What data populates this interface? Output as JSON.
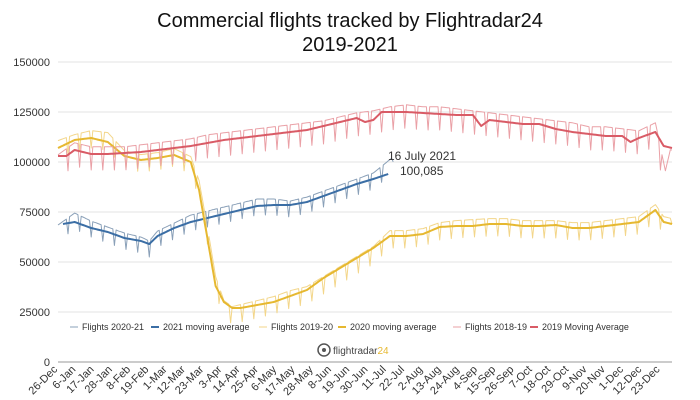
{
  "chart_data": {
    "type": "line",
    "title": "Commercial flights tracked by Flightradar24",
    "subtitle": "2019-2021",
    "ylim": [
      0,
      150000
    ],
    "y_ticks": [
      "0",
      "25000",
      "50000",
      "75000",
      "100000",
      "125000",
      "150000"
    ],
    "y_tick_values": [
      0,
      25000,
      50000,
      75000,
      100000,
      125000,
      150000
    ],
    "x_tick_labels": [
      "26-Dec",
      "6-Jan",
      "17-Jan",
      "28-Jan",
      "8-Feb",
      "19-Feb",
      "1-Mar",
      "12-Mar",
      "23-Mar",
      "3-Apr",
      "14-Apr",
      "25-Apr",
      "6-May",
      "17-May",
      "28-May",
      "8-Jun",
      "19-Jun",
      "30-Jun",
      "11-Jul",
      "22-Jul",
      "2-Aug",
      "13-Aug",
      "24-Aug",
      "4-Sep",
      "15-Sep",
      "26-Sep",
      "7-Oct",
      "18-Oct",
      "29-Oct",
      "9-Nov",
      "20-Nov",
      "1-Dec",
      "12-Dec",
      "23-Dec"
    ],
    "x_tick_days": [
      0,
      11,
      22,
      33,
      44,
      55,
      66,
      77,
      88,
      99,
      110,
      121,
      132,
      143,
      154,
      165,
      176,
      187,
      198,
      209,
      220,
      231,
      242,
      253,
      264,
      275,
      286,
      297,
      308,
      319,
      330,
      341,
      352,
      363
    ],
    "x_range_days": [
      0,
      370
    ],
    "grid": true,
    "legend_position": "bottom",
    "annotation": {
      "line1": "16 July 2021",
      "line2": "100,085",
      "x_day": 202,
      "y": 100085
    },
    "series": [
      {
        "name": "Flights 2020-21",
        "color": "#8aa0b8",
        "style": "daily",
        "amp": 5500,
        "period": 7,
        "end_day": 202,
        "x": [
          0,
          10,
          20,
          30,
          40,
          50,
          55,
          60,
          70,
          80,
          90,
          100,
          110,
          120,
          130,
          140,
          150,
          160,
          170,
          180,
          190,
          202
        ],
        "y": [
          66000,
          72000,
          68000,
          65000,
          62000,
          60000,
          58000,
          63000,
          67000,
          71000,
          73000,
          75000,
          77000,
          79000,
          79000,
          78000,
          80000,
          83000,
          86000,
          89000,
          92000,
          100085
        ]
      },
      {
        "name": "2021 moving average",
        "color": "#3b6ea5",
        "style": "avg",
        "x": [
          3,
          10,
          20,
          30,
          40,
          50,
          55,
          60,
          70,
          80,
          90,
          100,
          110,
          120,
          130,
          140,
          150,
          160,
          170,
          180,
          190,
          199
        ],
        "y": [
          69000,
          70000,
          67000,
          65000,
          62000,
          60500,
          59000,
          63000,
          67000,
          70000,
          72000,
          74000,
          76000,
          78000,
          78500,
          78500,
          80000,
          83000,
          86000,
          89000,
          91500,
          94000
        ]
      },
      {
        "name": "Flights 2019-20",
        "color": "#f3d68a",
        "style": "daily",
        "amp": 6000,
        "period": 7,
        "end_day": 370,
        "x": [
          0,
          10,
          20,
          30,
          40,
          50,
          60,
          70,
          80,
          85,
          90,
          95,
          100,
          105,
          110,
          120,
          130,
          140,
          150,
          160,
          170,
          180,
          190,
          200,
          210,
          220,
          230,
          240,
          250,
          260,
          270,
          280,
          290,
          300,
          310,
          320,
          330,
          340,
          350,
          360,
          365,
          370
        ],
        "y": [
          108000,
          111000,
          113000,
          112000,
          103000,
          101000,
          102000,
          104000,
          100000,
          88000,
          65000,
          40000,
          28000,
          25000,
          26000,
          28000,
          30000,
          33000,
          35000,
          40000,
          45000,
          50000,
          55000,
          63000,
          63000,
          64000,
          67000,
          68000,
          68500,
          69000,
          69000,
          68000,
          68000,
          68000,
          67000,
          67000,
          68000,
          69000,
          70000,
          76000,
          70000,
          69000
        ]
      },
      {
        "name": "2020 moving average",
        "color": "#e6b830",
        "style": "avg",
        "x": [
          0,
          10,
          20,
          30,
          40,
          50,
          60,
          70,
          80,
          85,
          90,
          95,
          100,
          105,
          110,
          120,
          130,
          140,
          150,
          160,
          170,
          180,
          190,
          200,
          210,
          220,
          230,
          240,
          250,
          260,
          270,
          280,
          290,
          300,
          310,
          320,
          330,
          340,
          350,
          360,
          365,
          370
        ],
        "y": [
          107000,
          111000,
          112000,
          110000,
          103000,
          101000,
          102000,
          103500,
          100000,
          86000,
          62000,
          38000,
          30000,
          27000,
          27000,
          28500,
          30000,
          33000,
          36000,
          42000,
          47000,
          52000,
          57000,
          63000,
          63000,
          64000,
          67500,
          68000,
          68000,
          69000,
          69000,
          68000,
          68000,
          68500,
          67000,
          67000,
          68000,
          69000,
          70000,
          76000,
          70000,
          69000
        ]
      },
      {
        "name": "Flights 2018-19",
        "color": "#eaa0a6",
        "style": "daily",
        "amp": 8000,
        "period": 7,
        "end_day": 370,
        "x": [
          0,
          10,
          20,
          30,
          40,
          50,
          60,
          70,
          80,
          90,
          100,
          110,
          120,
          130,
          140,
          150,
          160,
          170,
          180,
          190,
          200,
          210,
          220,
          230,
          240,
          250,
          260,
          270,
          280,
          290,
          300,
          310,
          320,
          330,
          340,
          350,
          360,
          366,
          370
        ],
        "y": [
          100000,
          106000,
          104000,
          104000,
          104000,
          105000,
          106000,
          107000,
          108000,
          110000,
          111000,
          112000,
          113000,
          114000,
          115000,
          116000,
          117000,
          119000,
          121000,
          122000,
          124000,
          125000,
          124000,
          124000,
          123000,
          122000,
          121000,
          120000,
          119000,
          118000,
          117000,
          116000,
          114000,
          114000,
          113000,
          112000,
          116000,
          92000,
          106000
        ]
      },
      {
        "name": "2019 Moving Average",
        "color": "#d95b66",
        "style": "avg",
        "x": [
          0,
          5,
          10,
          20,
          30,
          40,
          50,
          60,
          70,
          80,
          90,
          100,
          110,
          120,
          130,
          140,
          150,
          160,
          170,
          180,
          185,
          190,
          195,
          200,
          210,
          220,
          230,
          240,
          250,
          255,
          260,
          270,
          280,
          290,
          300,
          310,
          320,
          330,
          340,
          345,
          350,
          360,
          365,
          370
        ],
        "y": [
          103000,
          103000,
          106000,
          104000,
          104000,
          104500,
          105000,
          106000,
          107000,
          108000,
          109500,
          111000,
          112000,
          113000,
          114000,
          115000,
          116000,
          118000,
          120000,
          122000,
          120000,
          121000,
          125000,
          125000,
          125000,
          124500,
          124000,
          123500,
          123500,
          118000,
          121000,
          120000,
          119000,
          119000,
          116500,
          115000,
          114000,
          113000,
          113000,
          110000,
          112000,
          115000,
          108000,
          107000
        ]
      }
    ]
  },
  "logo": {
    "text": "flightradar",
    "suffix": "24",
    "color": "#e6b830"
  }
}
